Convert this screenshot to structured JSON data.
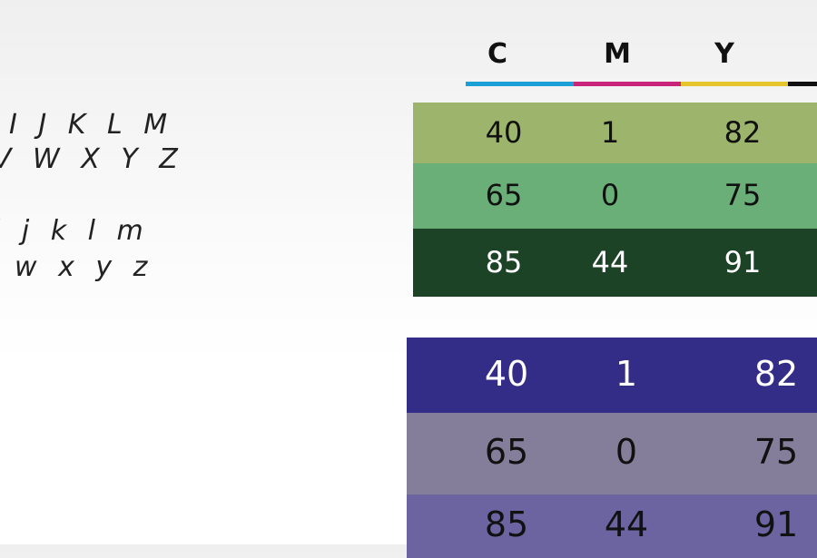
{
  "header": {
    "columns": [
      {
        "label": "C",
        "color": "#1a9fd6"
      },
      {
        "label": "M",
        "color": "#c8247a"
      },
      {
        "label": "Y",
        "color": "#e6c42c"
      }
    ]
  },
  "alphabet": {
    "lines": [
      "I J K L M",
      "V W X Y Z",
      "i j k l m",
      "w x y z"
    ]
  },
  "swatches": [
    {
      "rows": [
        {
          "color": "#9db46c",
          "text_color": "#111111",
          "values": [
            40,
            1,
            82
          ]
        },
        {
          "color": "#6aae78",
          "text_color": "#111111",
          "values": [
            65,
            0,
            75
          ]
        },
        {
          "color": "#1d4327",
          "text_color": "#ffffff",
          "values": [
            85,
            44,
            91
          ]
        }
      ]
    },
    {
      "rows": [
        {
          "color": "#332d87",
          "text_color": "#ffffff",
          "values": [
            40,
            1,
            82
          ]
        },
        {
          "color": "#857e9b",
          "text_color": "#111111",
          "values": [
            65,
            0,
            75
          ]
        },
        {
          "color": "#6c64a1",
          "text_color": "#111111",
          "values": [
            85,
            44,
            91
          ]
        }
      ]
    }
  ]
}
